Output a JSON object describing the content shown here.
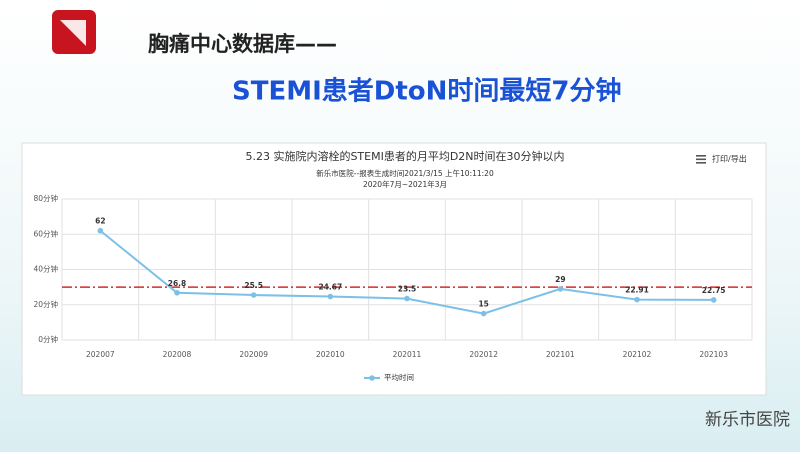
{
  "header": {
    "title": "胸痛中心数据库——",
    "subtitle": "STEMI患者DtoN时间最短7分钟"
  },
  "watermark": "新乐市医院",
  "chart_data": {
    "type": "line",
    "title": "5.23 实施院内溶栓的STEMI患者的月平均D2N时间在30分钟以内",
    "subtitle": "新乐市医院--报表生成时间2021/3/15 上午10:11:20",
    "period": "2020年7月~2021年3月",
    "menu": "打印/导出",
    "categories": [
      "202007",
      "202008",
      "202009",
      "202010",
      "202011",
      "202012",
      "202101",
      "202102",
      "202103"
    ],
    "series": [
      {
        "name": "平均时间",
        "color": "#7cc0e8",
        "values": [
          62,
          26.8,
          25.5,
          24.67,
          23.5,
          15,
          29,
          22.91,
          22.75
        ]
      }
    ],
    "ylim": [
      0,
      80
    ],
    "yticks": [
      {
        "value": 0,
        "label": "0分钟"
      },
      {
        "value": 20,
        "label": "20分钟"
      },
      {
        "value": 40,
        "label": "40分钟"
      },
      {
        "value": 60,
        "label": "60分钟"
      },
      {
        "value": 80,
        "label": "80分钟"
      }
    ],
    "reference_line": {
      "value": 30,
      "color": "#d42a2a"
    },
    "grid": true
  }
}
